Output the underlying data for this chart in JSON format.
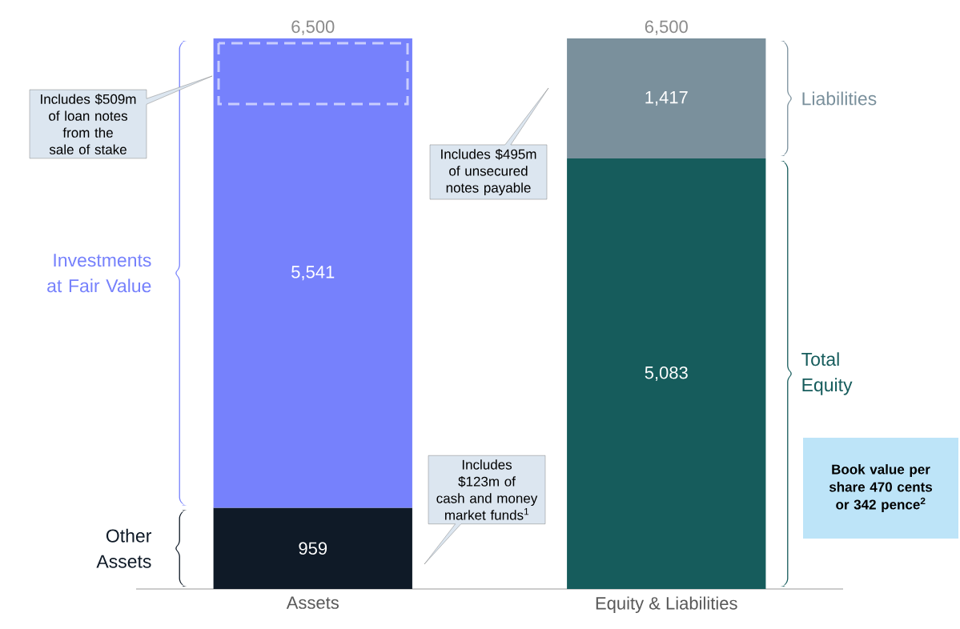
{
  "chart_data": {
    "type": "bar",
    "stacked": true,
    "categories": [
      "Assets",
      "Equity & Liabilities"
    ],
    "series": [
      {
        "name": "Other Assets",
        "color": "#0f1a27",
        "values": [
          959,
          null
        ],
        "value_labels": [
          "959",
          null
        ]
      },
      {
        "name": "Investments at Fair Value",
        "color": "#7681fc",
        "values": [
          5541,
          null
        ],
        "value_labels": [
          "5,541",
          null
        ]
      },
      {
        "name": "Total Equity",
        "color": "#165c5c",
        "values": [
          null,
          5083
        ],
        "value_labels": [
          null,
          "5,083"
        ]
      },
      {
        "name": "Liabilities",
        "color": "#7a909c",
        "values": [
          null,
          1417
        ],
        "value_labels": [
          null,
          "1,417"
        ]
      }
    ],
    "totals": [
      "6,500",
      "6,500"
    ],
    "annotations": [
      "Includes $509m of loan notes from the sale of stake",
      "Includes $495m of unsecured notes payable",
      "Includes $123m of cash and money market funds$^{1}$",
      "Book value per share 470 cents or 342 pence$^{2}$"
    ]
  }
}
